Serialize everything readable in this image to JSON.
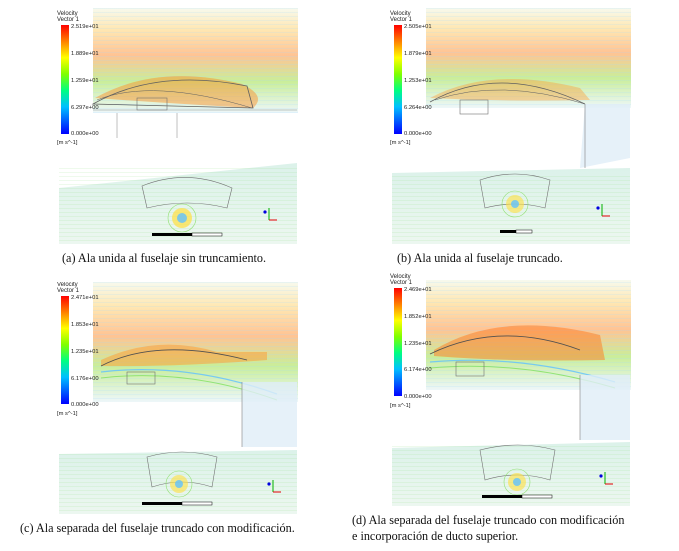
{
  "colors": {
    "background": "#ffffff",
    "colormap": [
      "#0000ff",
      "#0080ff",
      "#00ffff",
      "#00ff80",
      "#80ff00",
      "#ffff00",
      "#ff8000",
      "#ff0000"
    ],
    "flow_low": "#a8d8ff",
    "flow_mid": "#8fe06a",
    "flow_high": "#ff9a30",
    "grid_line": "#7f7f7f",
    "axis_green": "#00b000",
    "axis_red": "#e00000",
    "axis_blue": "#0000e0"
  },
  "panels": [
    {
      "id": "a",
      "legend": {
        "title1": "Velocity",
        "title2": "Vector 1",
        "ticks": [
          "2.519e+01",
          "1.889e+01",
          "1.259e+01",
          "6.297e+00",
          "0.000e+00"
        ],
        "unit": "[m s^-1]"
      },
      "caption_line1": "(a) Ala unida al fuselaje sin truncamiento.",
      "caption_line2": ""
    },
    {
      "id": "b",
      "legend": {
        "title1": "Velocity",
        "title2": "Vector 1",
        "ticks": [
          "2.505e+01",
          "1.879e+01",
          "1.253e+01",
          "6.264e+00",
          "0.000e+00"
        ],
        "unit": "[m s^-1]"
      },
      "caption_line1": "(b) Ala unida al fuselaje truncado.",
      "caption_line2": ""
    },
    {
      "id": "c",
      "legend": {
        "title1": "Velocity",
        "title2": "Vector 1",
        "ticks": [
          "2.471e+01",
          "1.853e+01",
          "1.235e+01",
          "6.176e+00",
          "0.000e+00"
        ],
        "unit": "[m s^-1]"
      },
      "caption_line1": "(c) Ala separada del fuselaje truncado con modificación.",
      "caption_line2": ""
    },
    {
      "id": "d",
      "legend": {
        "title1": "Velocity",
        "title2": "Vector 1",
        "ticks": [
          "2.469e+01",
          "1.852e+01",
          "1.235e+01",
          "6.174e+00",
          "0.000e+00"
        ],
        "unit": "[m s^-1]"
      },
      "caption_line1": "(d) Ala separada del fuselaje truncado con modificación",
      "caption_line2": "e incorporación de ducto superior."
    }
  ]
}
